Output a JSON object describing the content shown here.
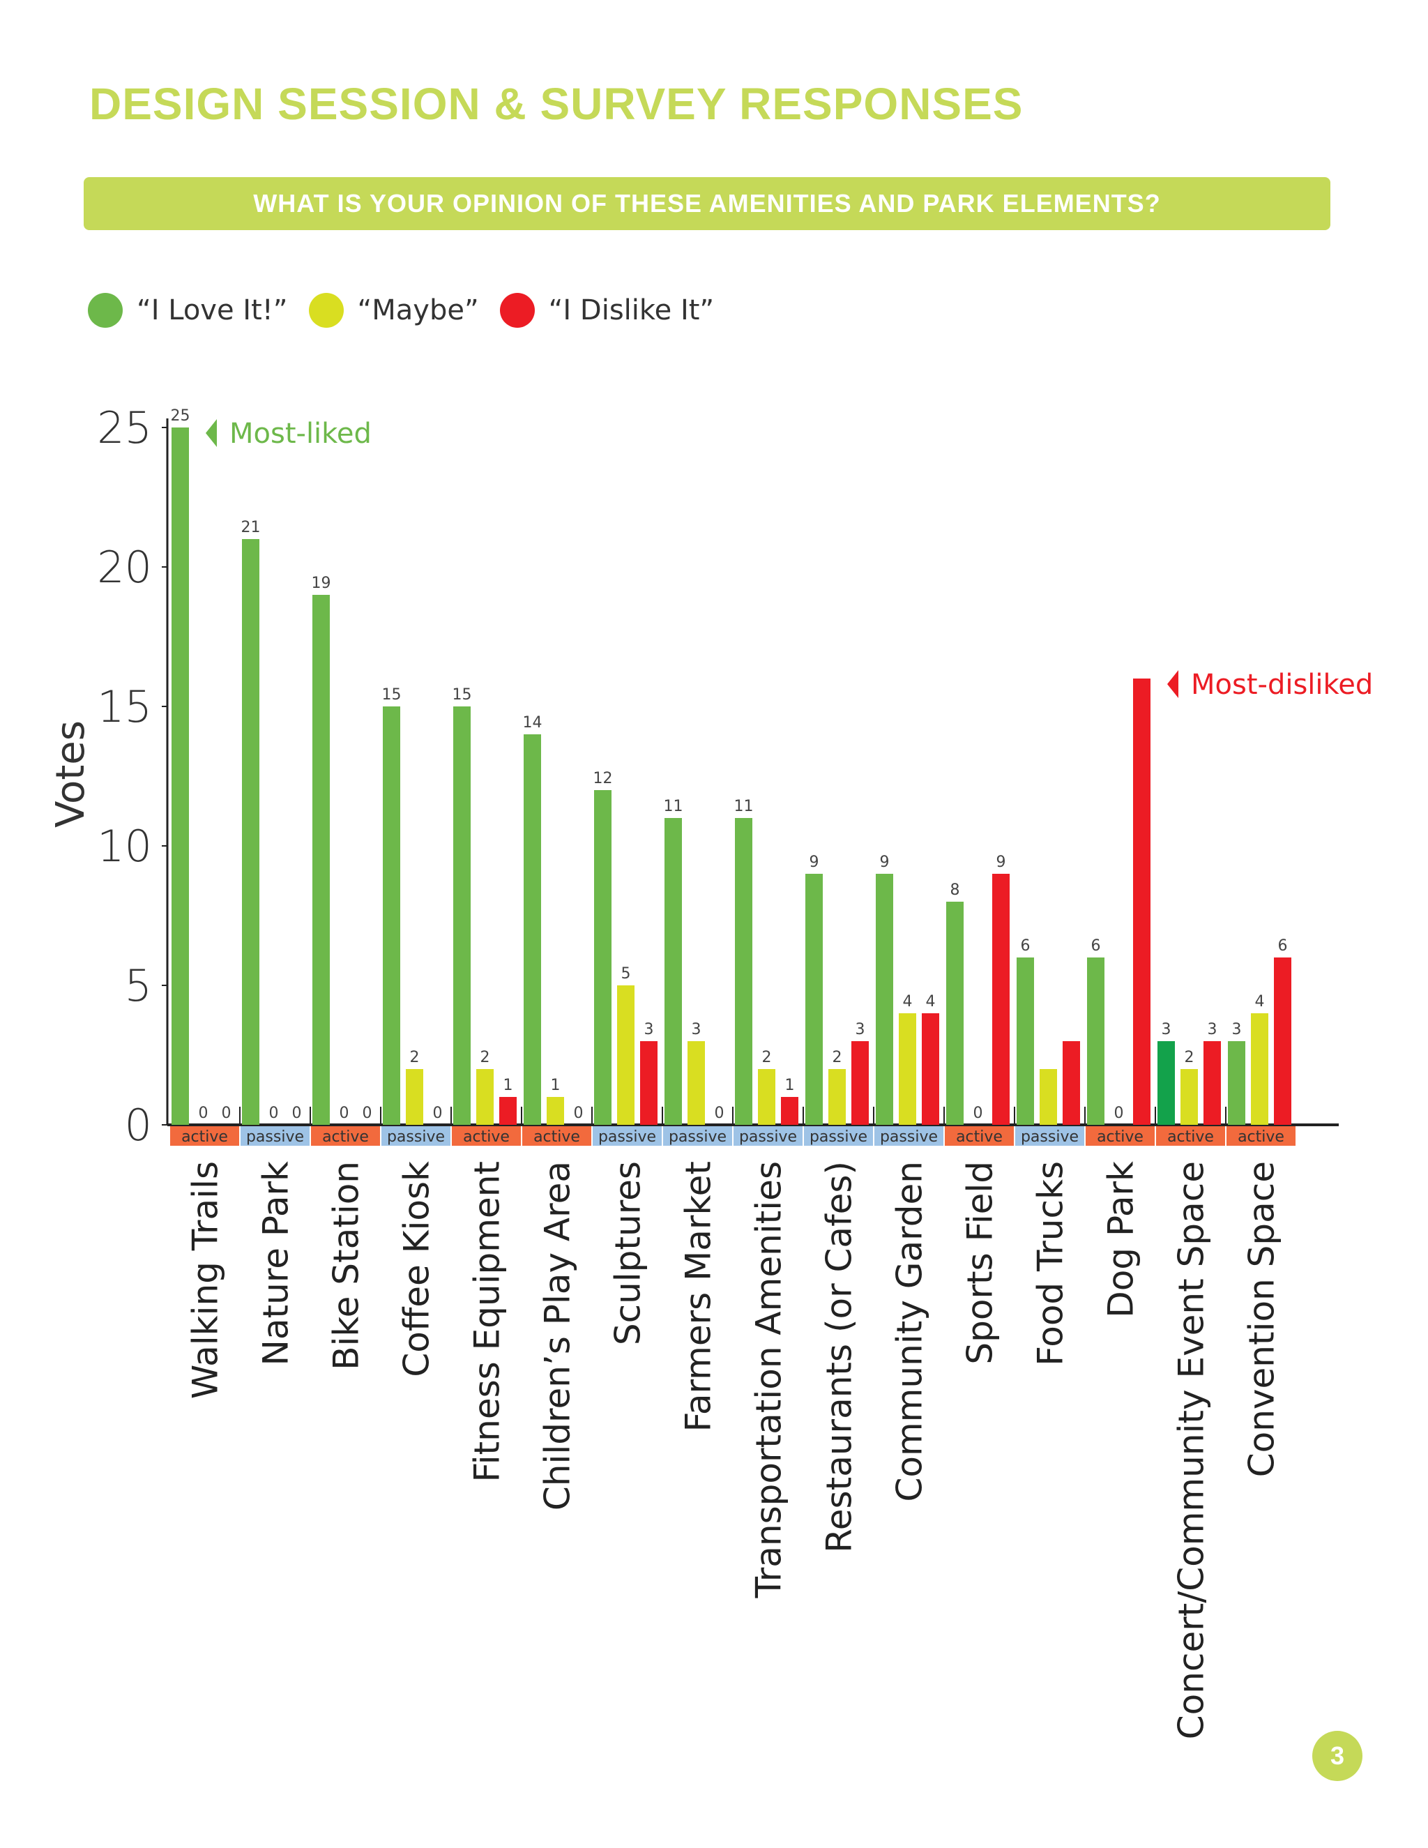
{
  "page": {
    "title": "DESIGN SESSION & SURVEY RESPONSES",
    "banner": "WHAT IS YOUR OPINION OF THESE AMENITIES AND PARK ELEMENTS?",
    "page_number": "3"
  },
  "colors": {
    "accent": "#c5d958",
    "love": "#6db84a",
    "love_highlight": "#13a24b",
    "maybe": "#d9de21",
    "dislike": "#ec1c24",
    "active_tag": "#f26a3d",
    "passive_tag": "#9ec3e6"
  },
  "chart_data": {
    "type": "bar",
    "ylabel": "Votes",
    "ylim": [
      0,
      25
    ],
    "yticks": [
      0,
      5,
      10,
      15,
      20,
      25
    ],
    "legend": [
      "“I Love It!”",
      "“Maybe”",
      "“I Dislike It”"
    ],
    "legend_placement": "top-left",
    "categories": [
      "Walking Trails",
      "Nature Park",
      "Bike Station",
      "Coffee Kiosk",
      "Fitness Equipment",
      "Children’s Play Area",
      "Sculptures",
      "Farmers Market",
      "Transportation Amenities",
      "Restaurants (or Cafes)",
      "Community Garden",
      "Sports Field",
      "Food Trucks",
      "Dog Park",
      "Concert/Community Event Space",
      "Convention Space"
    ],
    "tags": [
      "active",
      "passive",
      "active",
      "passive",
      "active",
      "active",
      "passive",
      "passive",
      "passive",
      "passive",
      "passive",
      "active",
      "passive",
      "active",
      "active",
      "active"
    ],
    "series": [
      {
        "values": [
          25,
          21,
          19,
          15,
          15,
          14,
          12,
          11,
          11,
          9,
          9,
          8,
          6,
          6,
          3,
          3
        ]
      },
      {
        "values": [
          0,
          0,
          0,
          2,
          2,
          1,
          5,
          3,
          2,
          2,
          4,
          0,
          2,
          0,
          2,
          4
        ]
      },
      {
        "values": [
          0,
          0,
          0,
          0,
          1,
          0,
          3,
          0,
          1,
          3,
          4,
          9,
          3,
          16,
          3,
          6
        ]
      }
    ],
    "value_labels": [
      [
        "25",
        "0",
        "0"
      ],
      [
        "21",
        "0",
        "0"
      ],
      [
        "19",
        "0",
        "0"
      ],
      [
        "15",
        "2",
        "0"
      ],
      [
        "15",
        "2",
        "1"
      ],
      [
        "14",
        "1",
        "0"
      ],
      [
        "12",
        "5",
        "3"
      ],
      [
        "11",
        "3",
        "0"
      ],
      [
        "11",
        "2",
        "1"
      ],
      [
        "9",
        "2",
        "3"
      ],
      [
        "9",
        "4",
        "4"
      ],
      [
        "8",
        "0",
        "9"
      ],
      [
        "6",
        "",
        ""
      ],
      [
        "6",
        "0",
        ""
      ],
      [
        "3",
        "2",
        "3"
      ],
      [
        "3",
        "4",
        "6"
      ]
    ],
    "annotations": [
      {
        "text": "Most-liked",
        "category": "Walking Trails",
        "series": 0,
        "color": "#6db84a"
      },
      {
        "text": "Most-disliked",
        "category": "Dog Park",
        "series": 2,
        "color": "#ec1c24"
      }
    ]
  }
}
